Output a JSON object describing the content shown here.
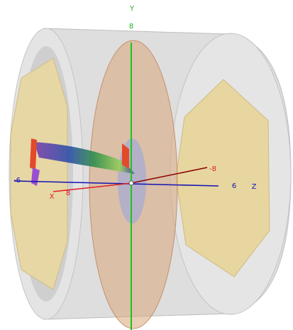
{
  "axes": {
    "y": {
      "name": "Y",
      "tick": "8"
    },
    "x": {
      "name": "X",
      "ticks": [
        "8",
        "-8"
      ]
    },
    "z": {
      "name": "Z",
      "ticks": [
        "-6",
        "6"
      ]
    }
  }
}
